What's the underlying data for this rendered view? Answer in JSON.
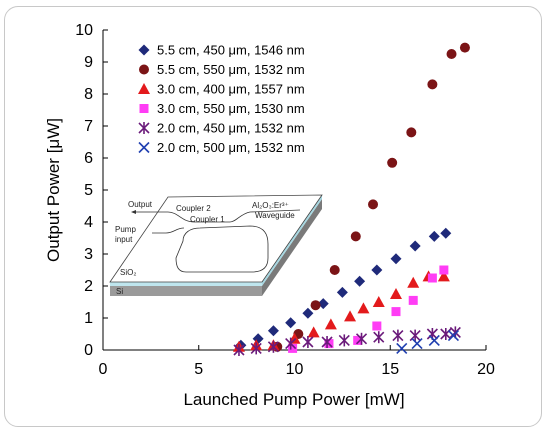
{
  "chart_data": {
    "type": "scatter",
    "xlabel": "Launched Pump Power [mW]",
    "ylabel": "Output Power [μW]",
    "xlim": [
      0,
      20
    ],
    "ylim": [
      0,
      10
    ],
    "xticks": [
      0,
      5,
      10,
      15,
      20
    ],
    "yticks": [
      0,
      1,
      2,
      3,
      4,
      5,
      6,
      7,
      8,
      9,
      10
    ],
    "grid": false,
    "legend_position": "top-left",
    "series": [
      {
        "name": "5.5 cm, 450 μm, 1546 nm",
        "marker": "diamond",
        "color": "#1f2a7a",
        "points": [
          [
            7.2,
            0.15
          ],
          [
            8.1,
            0.35
          ],
          [
            8.9,
            0.6
          ],
          [
            9.8,
            0.85
          ],
          [
            10.7,
            1.15
          ],
          [
            11.5,
            1.45
          ],
          [
            12.5,
            1.8
          ],
          [
            13.4,
            2.15
          ],
          [
            14.3,
            2.5
          ],
          [
            15.3,
            2.85
          ],
          [
            16.3,
            3.25
          ],
          [
            17.3,
            3.55
          ],
          [
            17.9,
            3.65
          ]
        ]
      },
      {
        "name": "5.5 cm, 550 μm, 1532 nm",
        "marker": "circle",
        "color": "#7b1416",
        "points": [
          [
            9.1,
            0.1
          ],
          [
            10.2,
            0.5
          ],
          [
            11.1,
            1.4
          ],
          [
            12.1,
            2.5
          ],
          [
            13.2,
            3.55
          ],
          [
            14.1,
            4.55
          ],
          [
            15.1,
            5.85
          ],
          [
            16.1,
            6.8
          ],
          [
            17.2,
            8.3
          ],
          [
            18.2,
            9.25
          ],
          [
            18.9,
            9.45
          ]
        ]
      },
      {
        "name": "3.0 cm, 400 μm, 1557 nm",
        "marker": "triangle",
        "color": "#e31a1c",
        "points": [
          [
            7.1,
            0.1
          ],
          [
            8.0,
            0.15
          ],
          [
            8.9,
            0.15
          ],
          [
            10.0,
            0.35
          ],
          [
            11.0,
            0.55
          ],
          [
            11.9,
            0.8
          ],
          [
            12.9,
            1.05
          ],
          [
            13.6,
            1.3
          ],
          [
            14.4,
            1.5
          ],
          [
            15.3,
            1.75
          ],
          [
            16.2,
            2.1
          ],
          [
            17.0,
            2.3
          ],
          [
            17.8,
            2.3
          ]
        ]
      },
      {
        "name": "3.0 cm, 550 μm, 1530 nm",
        "marker": "square",
        "color": "#ff3df5",
        "points": [
          [
            9.9,
            0.05
          ],
          [
            11.8,
            0.2
          ],
          [
            13.3,
            0.3
          ],
          [
            14.3,
            0.75
          ],
          [
            15.3,
            1.2
          ],
          [
            16.2,
            1.55
          ],
          [
            17.2,
            2.25
          ],
          [
            17.8,
            2.5
          ]
        ]
      },
      {
        "name": "2.0 cm, 450 μm, 1532 nm",
        "marker": "star",
        "color": "#6a1a7a",
        "points": [
          [
            7.1,
            0.0
          ],
          [
            8.0,
            0.05
          ],
          [
            8.9,
            0.1
          ],
          [
            9.8,
            0.2
          ],
          [
            10.7,
            0.25
          ],
          [
            11.7,
            0.25
          ],
          [
            12.6,
            0.3
          ],
          [
            13.5,
            0.35
          ],
          [
            14.4,
            0.4
          ],
          [
            15.4,
            0.45
          ],
          [
            16.3,
            0.45
          ],
          [
            17.2,
            0.5
          ],
          [
            17.9,
            0.5
          ],
          [
            18.4,
            0.55
          ]
        ]
      },
      {
        "name": "2.0 cm, 500 μm, 1532 nm",
        "marker": "x",
        "color": "#1f3fb0",
        "points": [
          [
            15.6,
            0.05
          ],
          [
            16.4,
            0.2
          ],
          [
            17.3,
            0.3
          ],
          [
            18.3,
            0.45
          ]
        ]
      }
    ]
  },
  "inset": {
    "output_label": "Output",
    "pump_label": "Pump",
    "pump_label_2": "input",
    "coupler2_label": "Coupler 2",
    "coupler1_label": "Coupler 1",
    "waveguide_label": "Al₂O₃:Er³⁺",
    "waveguide_label_2": "Waveguide",
    "sio2_label": "SiO₂",
    "si_label": "Si"
  }
}
